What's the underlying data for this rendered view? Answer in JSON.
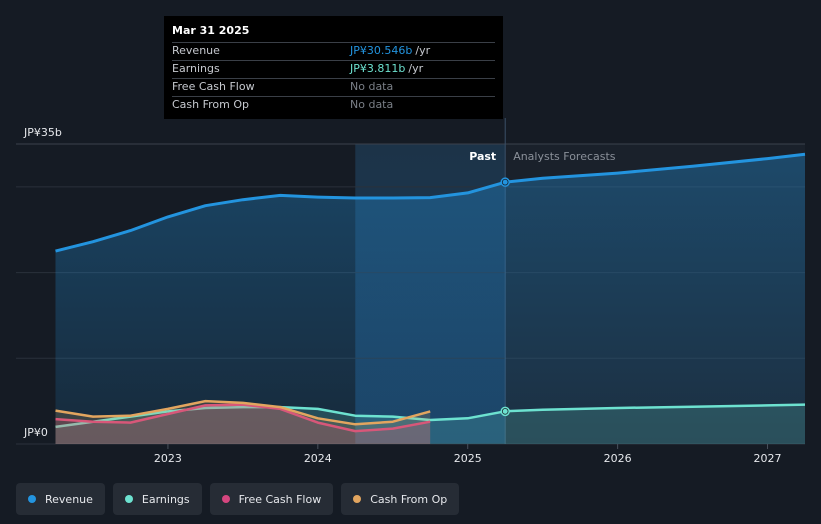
{
  "chart_data": {
    "type": "area",
    "y_unit_labels": {
      "top": "JP¥35b",
      "bottom": "JP¥0"
    },
    "ylim": [
      0,
      35
    ],
    "xlim": [
      2022.2,
      2027.25
    ],
    "x_ticks": [
      2023,
      2024,
      2025,
      2026,
      2027
    ],
    "x_tick_labels": [
      "2023",
      "2024",
      "2025",
      "2026",
      "2027"
    ],
    "past_label": "Past",
    "forecast_label": "Analysts Forecasts",
    "past_end_x": 2025.25,
    "forecast_band_start_x": 2024.25,
    "series": [
      {
        "name": "Revenue",
        "color": "#2394df",
        "fill": true,
        "points": [
          [
            2022.25,
            22.5
          ],
          [
            2022.5,
            23.6
          ],
          [
            2022.75,
            24.9
          ],
          [
            2023.0,
            26.5
          ],
          [
            2023.25,
            27.8
          ],
          [
            2023.5,
            28.5
          ],
          [
            2023.75,
            29.0
          ],
          [
            2024.0,
            28.8
          ],
          [
            2024.25,
            28.7
          ],
          [
            2024.5,
            28.7
          ],
          [
            2024.75,
            28.75
          ],
          [
            2025.0,
            29.3
          ],
          [
            2025.25,
            30.546
          ]
        ],
        "forecast_points": [
          [
            2025.25,
            30.546
          ],
          [
            2025.5,
            31.0
          ],
          [
            2026.0,
            31.6
          ],
          [
            2026.5,
            32.4
          ],
          [
            2027.0,
            33.3
          ],
          [
            2027.25,
            33.8
          ]
        ]
      },
      {
        "name": "Earnings",
        "color": "#6de2d0",
        "fill": true,
        "points": [
          [
            2022.25,
            2.0
          ],
          [
            2022.5,
            2.6
          ],
          [
            2022.75,
            3.2
          ],
          [
            2023.0,
            3.8
          ],
          [
            2023.25,
            4.2
          ],
          [
            2023.5,
            4.3
          ],
          [
            2023.75,
            4.3
          ],
          [
            2024.0,
            4.1
          ],
          [
            2024.25,
            3.3
          ],
          [
            2024.5,
            3.2
          ],
          [
            2024.75,
            2.8
          ],
          [
            2025.0,
            3.0
          ],
          [
            2025.25,
            3.811
          ]
        ],
        "forecast_points": [
          [
            2025.25,
            3.811
          ],
          [
            2025.5,
            4.0
          ],
          [
            2026.0,
            4.2
          ],
          [
            2026.5,
            4.35
          ],
          [
            2027.0,
            4.5
          ],
          [
            2027.25,
            4.6
          ]
        ]
      },
      {
        "name": "Free Cash Flow",
        "color": "#d5467f",
        "fill": true,
        "points": [
          [
            2022.25,
            2.9
          ],
          [
            2022.5,
            2.6
          ],
          [
            2022.75,
            2.5
          ],
          [
            2023.0,
            3.5
          ],
          [
            2023.25,
            4.5
          ],
          [
            2023.5,
            4.6
          ],
          [
            2023.75,
            4.1
          ],
          [
            2024.0,
            2.5
          ],
          [
            2024.25,
            1.5
          ],
          [
            2024.5,
            1.8
          ],
          [
            2024.75,
            2.6
          ]
        ],
        "forecast_points": []
      },
      {
        "name": "Cash From Op",
        "color": "#e2a55f",
        "fill": true,
        "points": [
          [
            2022.25,
            3.9
          ],
          [
            2022.5,
            3.2
          ],
          [
            2022.75,
            3.3
          ],
          [
            2023.0,
            4.1
          ],
          [
            2023.25,
            5.0
          ],
          [
            2023.5,
            4.8
          ],
          [
            2023.75,
            4.3
          ],
          [
            2024.0,
            3.0
          ],
          [
            2024.25,
            2.3
          ],
          [
            2024.5,
            2.6
          ],
          [
            2024.75,
            3.8
          ]
        ],
        "forecast_points": []
      }
    ]
  },
  "tooltip": {
    "date": "Mar 31 2025",
    "rows": [
      {
        "label": "Revenue",
        "value": "JP¥30.546b",
        "unit": "/yr"
      },
      {
        "label": "Earnings",
        "value": "JP¥3.811b",
        "unit": "/yr"
      },
      {
        "label": "Free Cash Flow",
        "value": "No data",
        "unit": ""
      },
      {
        "label": "Cash From Op",
        "value": "No data",
        "unit": ""
      }
    ]
  },
  "legend": [
    {
      "label": "Revenue",
      "color": "#2394df"
    },
    {
      "label": "Earnings",
      "color": "#6de2d0"
    },
    {
      "label": "Free Cash Flow",
      "color": "#d5467f"
    },
    {
      "label": "Cash From Op",
      "color": "#e2a55f"
    }
  ]
}
